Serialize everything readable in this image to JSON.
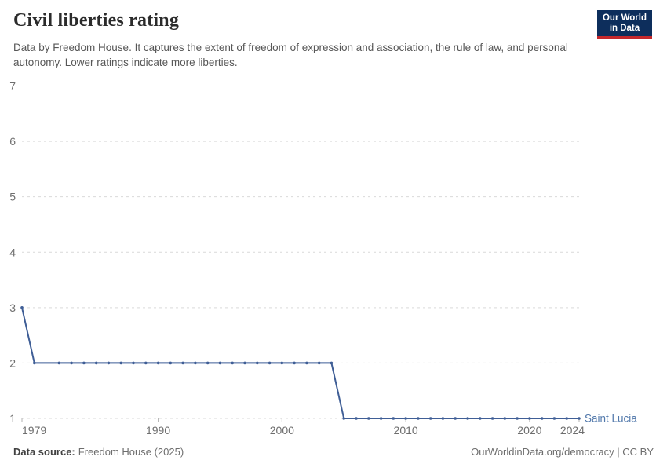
{
  "header": {
    "title": "Civil liberties rating",
    "subtitle": "Data by Freedom House. It captures the extent of freedom of expression and association, the rule of law, and personal autonomy. Lower ratings indicate more liberties."
  },
  "logo": {
    "line1": "Our World",
    "line2": "in Data",
    "background": "#0d2e5c",
    "stripe": "#c5282c"
  },
  "chart_data": {
    "type": "line",
    "title": "Civil liberties rating",
    "xlabel": "",
    "ylabel": "",
    "xlim": [
      1979,
      2024
    ],
    "ylim": [
      1,
      7
    ],
    "grid": "dashed-horizontal",
    "yticks": [
      1,
      2,
      3,
      4,
      5,
      6,
      7
    ],
    "xticks": [
      1979,
      1990,
      2000,
      2010,
      2020,
      2024
    ],
    "legend_position": "end-of-line-label",
    "series": [
      {
        "name": "Saint Lucia",
        "points": [
          [
            1979,
            3
          ],
          [
            1980,
            2
          ],
          [
            1982,
            2
          ],
          [
            1983,
            2
          ],
          [
            1984,
            2
          ],
          [
            1985,
            2
          ],
          [
            1986,
            2
          ],
          [
            1987,
            2
          ],
          [
            1988,
            2
          ],
          [
            1989,
            2
          ],
          [
            1990,
            2
          ],
          [
            1991,
            2
          ],
          [
            1992,
            2
          ],
          [
            1993,
            2
          ],
          [
            1994,
            2
          ],
          [
            1995,
            2
          ],
          [
            1996,
            2
          ],
          [
            1997,
            2
          ],
          [
            1998,
            2
          ],
          [
            1999,
            2
          ],
          [
            2000,
            2
          ],
          [
            2001,
            2
          ],
          [
            2002,
            2
          ],
          [
            2003,
            2
          ],
          [
            2004,
            2
          ],
          [
            2005,
            1
          ],
          [
            2006,
            1
          ],
          [
            2007,
            1
          ],
          [
            2008,
            1
          ],
          [
            2009,
            1
          ],
          [
            2010,
            1
          ],
          [
            2011,
            1
          ],
          [
            2012,
            1
          ],
          [
            2013,
            1
          ],
          [
            2014,
            1
          ],
          [
            2015,
            1
          ],
          [
            2016,
            1
          ],
          [
            2017,
            1
          ],
          [
            2018,
            1
          ],
          [
            2019,
            1
          ],
          [
            2020,
            1
          ],
          [
            2021,
            1
          ],
          [
            2022,
            1
          ],
          [
            2023,
            1
          ],
          [
            2024,
            1
          ]
        ]
      }
    ]
  },
  "colors": {
    "line": "#3f5e96",
    "series_label": "#5178ab",
    "grid": "#d9d9d9",
    "tick": "#b3b3b3",
    "axis_text": "#6e6e6e"
  },
  "footer": {
    "source_label": "Data source:",
    "source_value": "Freedom House (2025)",
    "credit": "OurWorldinData.org/democracy | CC BY"
  }
}
